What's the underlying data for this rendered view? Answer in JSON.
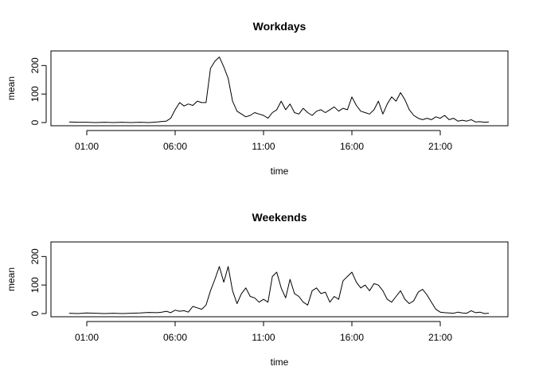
{
  "chart_data": [
    {
      "type": "line",
      "title": "Workdays",
      "xlabel": "time",
      "ylabel": "mean",
      "x_range_hours": [
        0,
        24
      ],
      "ylim": [
        0,
        240
      ],
      "x_ticks": [
        {
          "value": 1,
          "label": "01:00"
        },
        {
          "value": 6,
          "label": "06:00"
        },
        {
          "value": 11,
          "label": "11:00"
        },
        {
          "value": 16,
          "label": "16:00"
        },
        {
          "value": 21,
          "label": "21:00"
        }
      ],
      "y_ticks": [
        {
          "value": 0,
          "label": "0"
        },
        {
          "value": 100,
          "label": "100"
        },
        {
          "value": 200,
          "label": "200"
        }
      ],
      "series": [
        {
          "x": [
            0.0,
            0.5,
            1.0,
            1.5,
            2.0,
            2.5,
            3.0,
            3.5,
            4.0,
            4.5,
            5.0,
            5.25,
            5.5,
            5.75,
            6.0,
            6.25,
            6.5,
            6.75,
            7.0,
            7.25,
            7.5,
            7.75,
            8.0,
            8.25,
            8.5,
            8.75,
            9.0,
            9.25,
            9.5,
            9.75,
            10.0,
            10.25,
            10.5,
            10.75,
            11.0,
            11.25,
            11.5,
            11.75,
            12.0,
            12.25,
            12.5,
            12.75,
            13.0,
            13.25,
            13.5,
            13.75,
            14.0,
            14.25,
            14.5,
            14.75,
            15.0,
            15.25,
            15.5,
            15.75,
            16.0,
            16.25,
            16.5,
            16.75,
            17.0,
            17.25,
            17.5,
            17.75,
            18.0,
            18.25,
            18.5,
            18.75,
            19.0,
            19.25,
            19.5,
            19.75,
            20.0,
            20.25,
            20.5,
            20.75,
            21.0,
            21.25,
            21.5,
            21.75,
            22.0,
            22.25,
            22.5,
            22.75,
            23.0,
            23.25,
            23.5,
            23.75
          ],
          "y": [
            2,
            1,
            1,
            0,
            1,
            0,
            1,
            0,
            1,
            0,
            2,
            4,
            5,
            15,
            45,
            70,
            58,
            65,
            60,
            75,
            70,
            70,
            190,
            215,
            230,
            195,
            155,
            75,
            40,
            30,
            20,
            25,
            35,
            30,
            25,
            15,
            35,
            45,
            75,
            45,
            65,
            35,
            30,
            50,
            35,
            25,
            40,
            45,
            35,
            45,
            55,
            40,
            50,
            45,
            90,
            60,
            40,
            35,
            30,
            45,
            75,
            30,
            65,
            90,
            75,
            105,
            80,
            45,
            25,
            15,
            10,
            15,
            10,
            20,
            15,
            25,
            10,
            15,
            5,
            8,
            5,
            10,
            2,
            3,
            1,
            2
          ]
        }
      ]
    },
    {
      "type": "line",
      "title": "Weekends",
      "xlabel": "time",
      "ylabel": "mean",
      "x_range_hours": [
        0,
        24
      ],
      "ylim": [
        0,
        240
      ],
      "x_ticks": [
        {
          "value": 1,
          "label": "01:00"
        },
        {
          "value": 6,
          "label": "06:00"
        },
        {
          "value": 11,
          "label": "11:00"
        },
        {
          "value": 16,
          "label": "16:00"
        },
        {
          "value": 21,
          "label": "21:00"
        }
      ],
      "y_ticks": [
        {
          "value": 0,
          "label": "0"
        },
        {
          "value": 100,
          "label": "100"
        },
        {
          "value": 200,
          "label": "200"
        }
      ],
      "series": [
        {
          "x": [
            0.0,
            0.5,
            1.0,
            1.5,
            2.0,
            2.5,
            3.0,
            3.5,
            4.0,
            4.5,
            5.0,
            5.25,
            5.5,
            5.75,
            6.0,
            6.25,
            6.5,
            6.75,
            7.0,
            7.25,
            7.5,
            7.75,
            8.0,
            8.25,
            8.5,
            8.75,
            9.0,
            9.25,
            9.5,
            9.75,
            10.0,
            10.25,
            10.5,
            10.75,
            11.0,
            11.25,
            11.5,
            11.75,
            12.0,
            12.25,
            12.5,
            12.75,
            13.0,
            13.25,
            13.5,
            13.75,
            14.0,
            14.25,
            14.5,
            14.75,
            15.0,
            15.25,
            15.5,
            15.75,
            16.0,
            16.25,
            16.5,
            16.75,
            17.0,
            17.25,
            17.5,
            17.75,
            18.0,
            18.25,
            18.5,
            18.75,
            19.0,
            19.25,
            19.5,
            19.75,
            20.0,
            20.25,
            20.5,
            20.75,
            21.0,
            21.25,
            21.5,
            21.75,
            22.0,
            22.25,
            22.5,
            22.75,
            23.0,
            23.25,
            23.5,
            23.75
          ],
          "y": [
            1,
            0,
            2,
            1,
            0,
            1,
            0,
            1,
            2,
            4,
            3,
            5,
            8,
            3,
            12,
            8,
            10,
            5,
            25,
            20,
            15,
            30,
            80,
            120,
            165,
            110,
            165,
            80,
            35,
            70,
            90,
            60,
            55,
            40,
            50,
            40,
            130,
            145,
            90,
            55,
            120,
            70,
            60,
            40,
            30,
            80,
            90,
            70,
            75,
            40,
            60,
            50,
            115,
            130,
            145,
            110,
            90,
            100,
            80,
            105,
            100,
            80,
            50,
            40,
            60,
            80,
            50,
            35,
            45,
            75,
            85,
            65,
            40,
            15,
            5,
            3,
            2,
            1,
            5,
            2,
            1,
            10,
            3,
            5,
            0,
            1
          ]
        }
      ]
    }
  ]
}
